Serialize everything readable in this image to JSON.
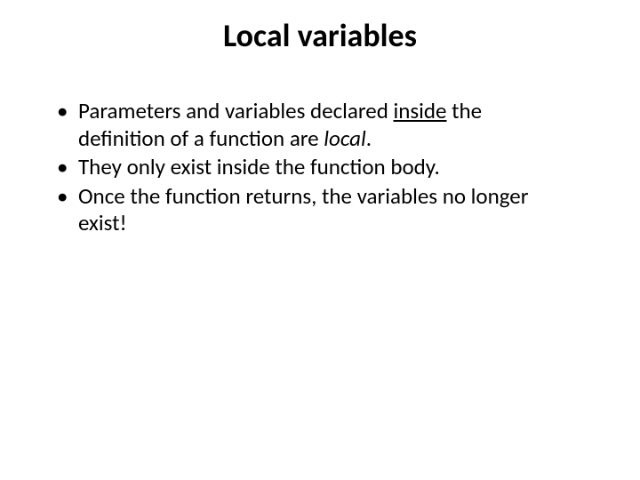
{
  "slide": {
    "title": "Local variables",
    "bullets": [
      {
        "pre": "Parameters and variables declared ",
        "underlined": "inside",
        "mid": " the definition of a function are ",
        "italic": "local",
        "post": "."
      },
      {
        "text": "They only exist inside the function body."
      },
      {
        "text": "Once the function returns, the variables no longer exist!"
      }
    ]
  },
  "style": {
    "background_color": "#ffffff",
    "text_color": "#000000",
    "title_fontsize": 36,
    "title_weight": "bold",
    "body_fontsize": 25,
    "bullet_char": "•",
    "font_family": "Calibri, 'Segoe UI', Arial, sans-serif"
  }
}
